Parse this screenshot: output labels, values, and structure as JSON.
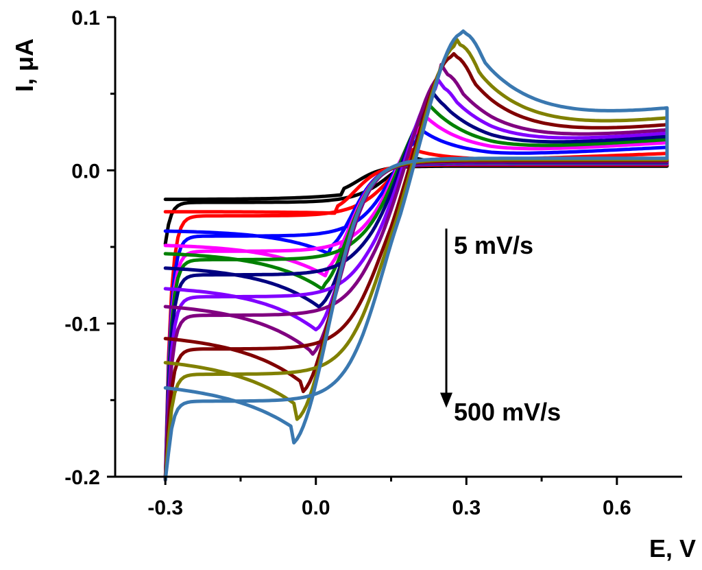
{
  "chart_data": {
    "type": "line",
    "xlabel": "E, V",
    "ylabel": "I, μA",
    "xlim": [
      -0.4,
      0.73
    ],
    "ylim": [
      -0.2,
      0.1
    ],
    "x_ticks": [
      "-0.3",
      "0.0",
      "0.3",
      "0.6"
    ],
    "y_ticks": [
      "0.1",
      "0.0",
      "-0.1",
      "-0.2"
    ],
    "x_tick_values": [
      -0.3,
      0.0,
      0.3,
      0.6
    ],
    "y_tick_values": [
      0.1,
      0.0,
      -0.1,
      -0.2
    ],
    "grid": false,
    "legend": "none",
    "annotations": {
      "top": "5 mV/s",
      "bottom": "500 mV/s",
      "arrow": {
        "x": 0.26,
        "from_y": -0.038,
        "to_y": -0.155
      }
    },
    "series": [
      {
        "color": "#000000",
        "scale": 0.13,
        "start_i": -0.046,
        "vertex_i": 0.005,
        "anodic_peak": 0.01,
        "cathodic_peak": -0.016,
        "epa": 0.18,
        "epc": 0.05,
        "sep": 0.015,
        "low_corner": -0.019
      },
      {
        "color": "#ff0000",
        "scale": 0.27,
        "start_i": -0.2,
        "vertex_i": 0.011,
        "anodic_peak": 0.014,
        "cathodic_peak": -0.028,
        "epa": 0.19,
        "epc": 0.04,
        "sep": 0.02,
        "low_corner": -0.027
      },
      {
        "color": "#0000ff",
        "scale": 0.38,
        "start_i": -0.2,
        "vertex_i": 0.015,
        "anodic_peak": 0.029,
        "cathodic_peak": -0.055,
        "epa": 0.2,
        "epc": 0.03,
        "sep": 0.022,
        "low_corner": -0.039
      },
      {
        "color": "#ff00ff",
        "scale": 0.45,
        "start_i": -0.2,
        "vertex_i": 0.018,
        "anodic_peak": 0.038,
        "cathodic_peak": -0.069,
        "epa": 0.21,
        "epc": 0.02,
        "sep": 0.024,
        "low_corner": -0.048
      },
      {
        "color": "#008000",
        "scale": 0.5,
        "start_i": -0.2,
        "vertex_i": 0.02,
        "anodic_peak": 0.045,
        "cathodic_peak": -0.078,
        "epa": 0.22,
        "epc": 0.015,
        "sep": 0.026,
        "low_corner": -0.053
      },
      {
        "color": "#000080",
        "scale": 0.56,
        "start_i": -0.2,
        "vertex_i": 0.022,
        "anodic_peak": 0.052,
        "cathodic_peak": -0.09,
        "epa": 0.23,
        "epc": 0.01,
        "sep": 0.028,
        "low_corner": -0.062
      },
      {
        "color": "#8000ff",
        "scale": 0.63,
        "start_i": -0.2,
        "vertex_i": 0.024,
        "anodic_peak": 0.061,
        "cathodic_peak": -0.104,
        "epa": 0.24,
        "epc": 0.0,
        "sep": 0.03,
        "low_corner": -0.075
      },
      {
        "color": "#800080",
        "scale": 0.7,
        "start_i": -0.2,
        "vertex_i": 0.026,
        "anodic_peak": 0.069,
        "cathodic_peak": -0.118,
        "epa": 0.25,
        "epc": -0.01,
        "sep": 0.032,
        "low_corner": -0.086
      },
      {
        "color": "#800000",
        "scale": 0.78,
        "start_i": -0.2,
        "vertex_i": 0.029,
        "anodic_peak": 0.079,
        "cathodic_peak": -0.138,
        "epa": 0.27,
        "epc": -0.03,
        "sep": 0.034,
        "low_corner": -0.106
      },
      {
        "color": "#808000",
        "scale": 0.88,
        "start_i": -0.2,
        "vertex_i": 0.033,
        "anodic_peak": 0.086,
        "cathodic_peak": -0.153,
        "epa": 0.28,
        "epc": -0.04,
        "sep": 0.036,
        "low_corner": -0.121
      },
      {
        "color": "#3a78b0",
        "scale": 1.0,
        "start_i": -0.2,
        "vertex_i": 0.039,
        "anodic_peak": 0.093,
        "cathodic_peak": -0.167,
        "epa": 0.29,
        "epc": -0.05,
        "sep": 0.038,
        "low_corner": -0.137
      }
    ]
  }
}
